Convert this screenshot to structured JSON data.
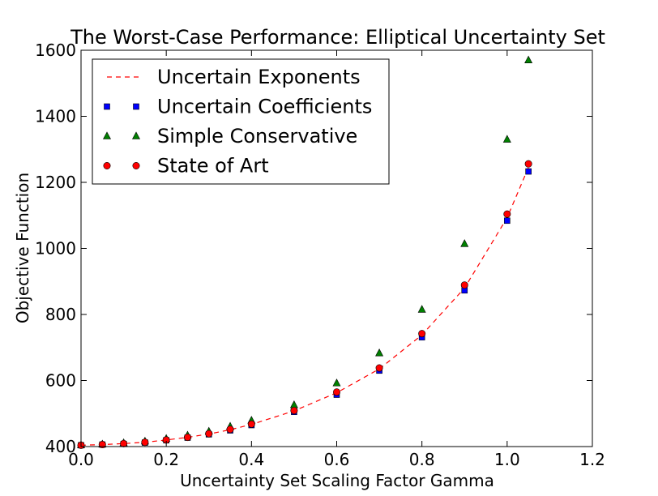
{
  "chart_data": {
    "type": "scatter",
    "title": "The Worst-Case Performance: Elliptical Uncertainty Set",
    "xlabel": "Uncertainty Set Scaling Factor Gamma",
    "ylabel": "Objective Function",
    "xlim": [
      0.0,
      1.2
    ],
    "ylim": [
      400,
      1600
    ],
    "xticks": [
      0.0,
      0.2,
      0.4,
      0.6,
      0.8,
      1.0,
      1.2
    ],
    "xtick_labels": [
      "0.0",
      "0.2",
      "0.4",
      "0.6",
      "0.8",
      "1.0",
      "1.2"
    ],
    "yticks": [
      400,
      600,
      800,
      1000,
      1200,
      1400,
      1600
    ],
    "ytick_labels": [
      "400",
      "600",
      "800",
      "1000",
      "1200",
      "1400",
      "1600"
    ],
    "grid": false,
    "legend_position": "top-left",
    "x": [
      0.0,
      0.05,
      0.1,
      0.15,
      0.2,
      0.25,
      0.3,
      0.35,
      0.4,
      0.5,
      0.6,
      0.7,
      0.8,
      0.9,
      1.0,
      1.05
    ],
    "series": [
      {
        "name": "Uncertain Exponents",
        "style": "dashed-line",
        "color": "#ff0000",
        "values": [
          404,
          406,
          409,
          413,
          420,
          428,
          438,
          451,
          467,
          508,
          563,
          635,
          738,
          880,
          1093,
          1245
        ]
      },
      {
        "name": "Uncertain Coefficients",
        "style": "square-marker",
        "color": "#0000ff",
        "values": [
          404,
          406,
          408,
          412,
          419,
          427,
          437,
          449,
          465,
          505,
          557,
          630,
          731,
          873,
          1084,
          1233
        ]
      },
      {
        "name": "Simple Conservative",
        "style": "triangle-marker",
        "color": "#008000",
        "values": [
          405,
          407,
          411,
          416,
          424,
          434,
          446,
          461,
          479,
          526,
          592,
          683,
          815,
          1014,
          1330,
          1570
        ]
      },
      {
        "name": "State of Art",
        "style": "circle-marker",
        "color": "#ff0000",
        "values": [
          404,
          406,
          409,
          413,
          420,
          428,
          439,
          452,
          468,
          509,
          565,
          638,
          742,
          889,
          1104,
          1256
        ]
      }
    ]
  }
}
